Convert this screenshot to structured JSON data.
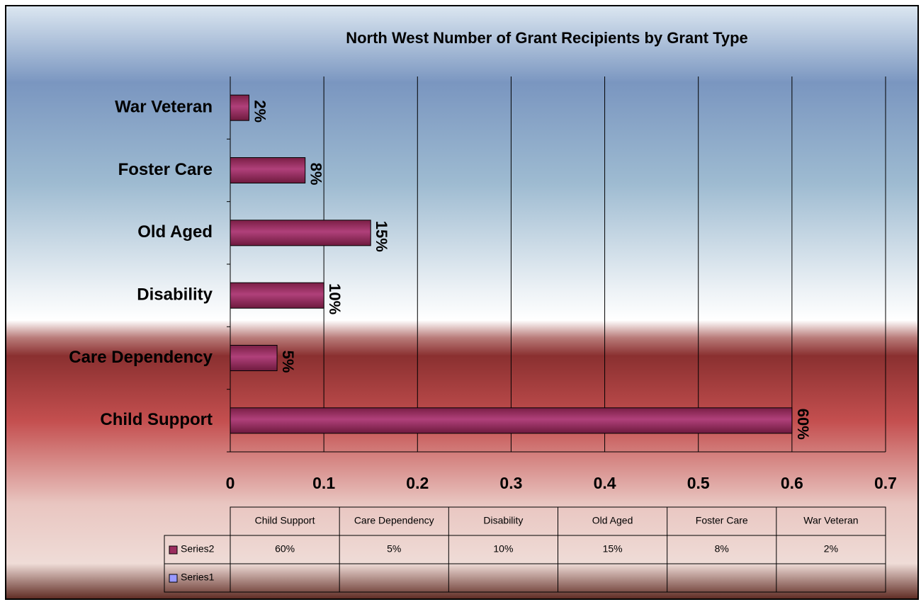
{
  "chart_data": {
    "type": "bar",
    "orientation": "horizontal",
    "title": "North West Number of Grant Recipients by Grant Type",
    "categories": [
      "Child Support",
      "Care Dependency",
      "Disability",
      "Old Aged",
      "Foster Care",
      "War Veteran"
    ],
    "series": [
      {
        "name": "Series2",
        "color": "#9b2d5f",
        "values": [
          0.6,
          0.05,
          0.1,
          0.15,
          0.08,
          0.02
        ],
        "value_labels": [
          "60%",
          "5%",
          "10%",
          "15%",
          "8%",
          "2%"
        ]
      },
      {
        "name": "Series1",
        "color": "#9999ff",
        "values": [
          null,
          null,
          null,
          null,
          null,
          null
        ]
      }
    ],
    "xlim": [
      0,
      0.7
    ],
    "xticks": [
      0,
      0.1,
      0.2,
      0.3,
      0.4,
      0.5,
      0.6,
      0.7
    ],
    "grid": true,
    "data_table": true
  }
}
